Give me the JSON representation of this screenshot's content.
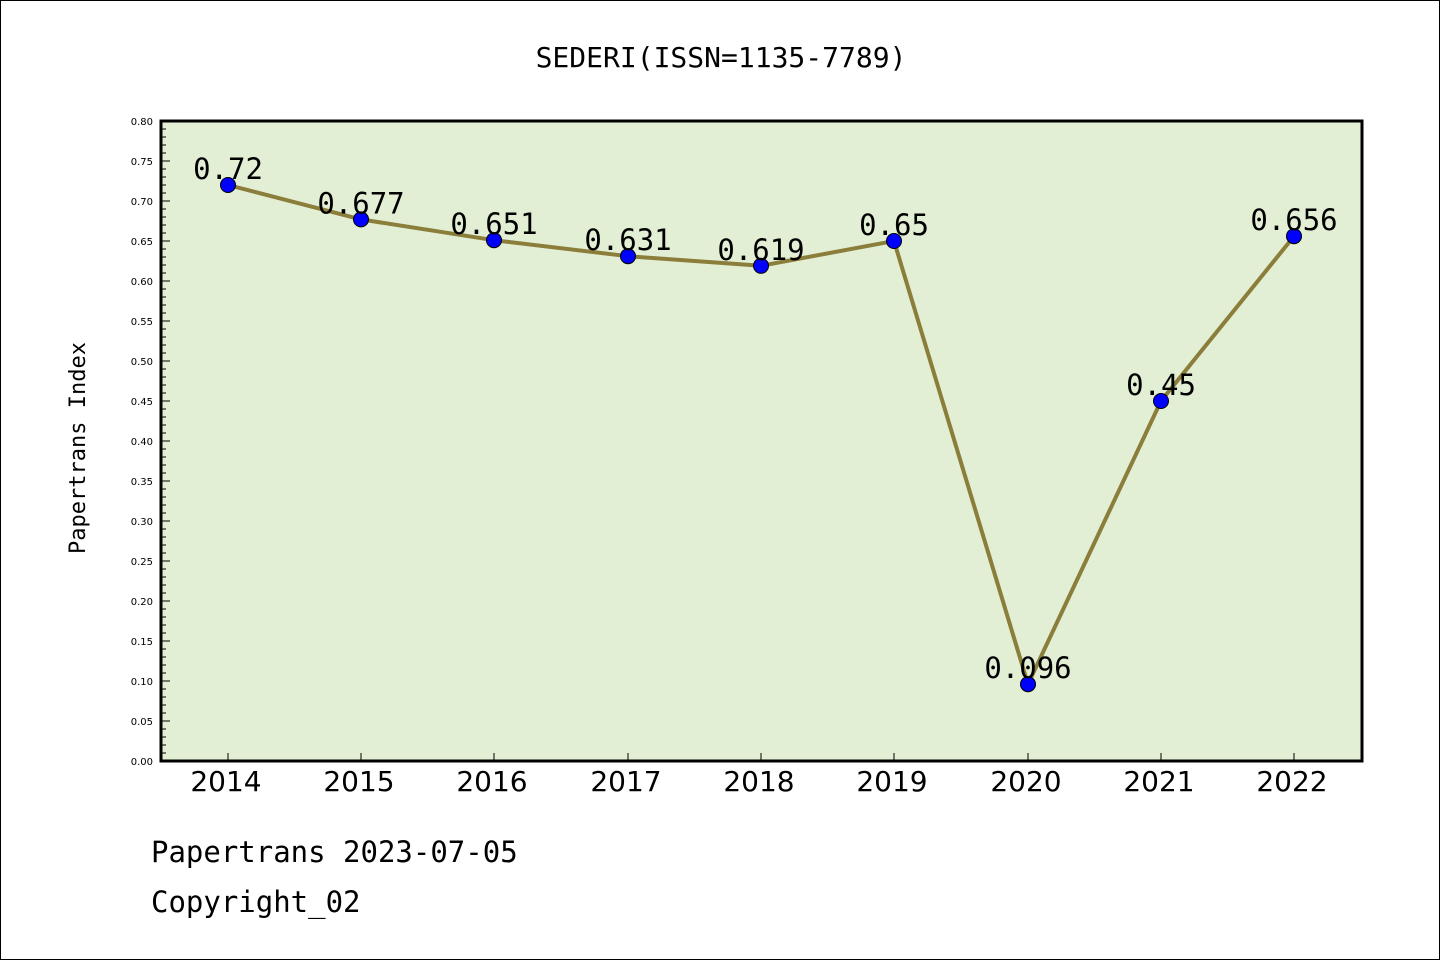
{
  "chart_data": {
    "type": "line",
    "title": "SEDERI(ISSN=1135-7789)",
    "xlabel": "",
    "ylabel": "Papertrans Index",
    "categories": [
      "2014",
      "2015",
      "2016",
      "2017",
      "2018",
      "2019",
      "2020",
      "2021",
      "2022"
    ],
    "series": [
      {
        "values": [
          0.72,
          0.677,
          0.651,
          0.631,
          0.619,
          0.65,
          0.096,
          0.45,
          0.656
        ],
        "labels": [
          "0.72",
          "0.677",
          "0.651",
          "0.631",
          "0.619",
          "0.65",
          "0.096",
          "0.45",
          "0.656"
        ]
      }
    ],
    "ylim": [
      0,
      0.8
    ],
    "yticks": [
      "0.00",
      "0.05",
      "0.10",
      "0.15",
      "0.20",
      "0.25",
      "0.30",
      "0.35",
      "0.40",
      "0.45",
      "0.50",
      "0.55",
      "0.60",
      "0.65",
      "0.70",
      "0.75",
      "0.80"
    ],
    "grid": false,
    "colors": {
      "plot_background": "#e2efd5",
      "line": "#8b7d3a",
      "marker": "#0000ff"
    }
  },
  "footer": {
    "source_line": "Papertrans 2023-07-05",
    "copyright": "Copyright_02"
  }
}
